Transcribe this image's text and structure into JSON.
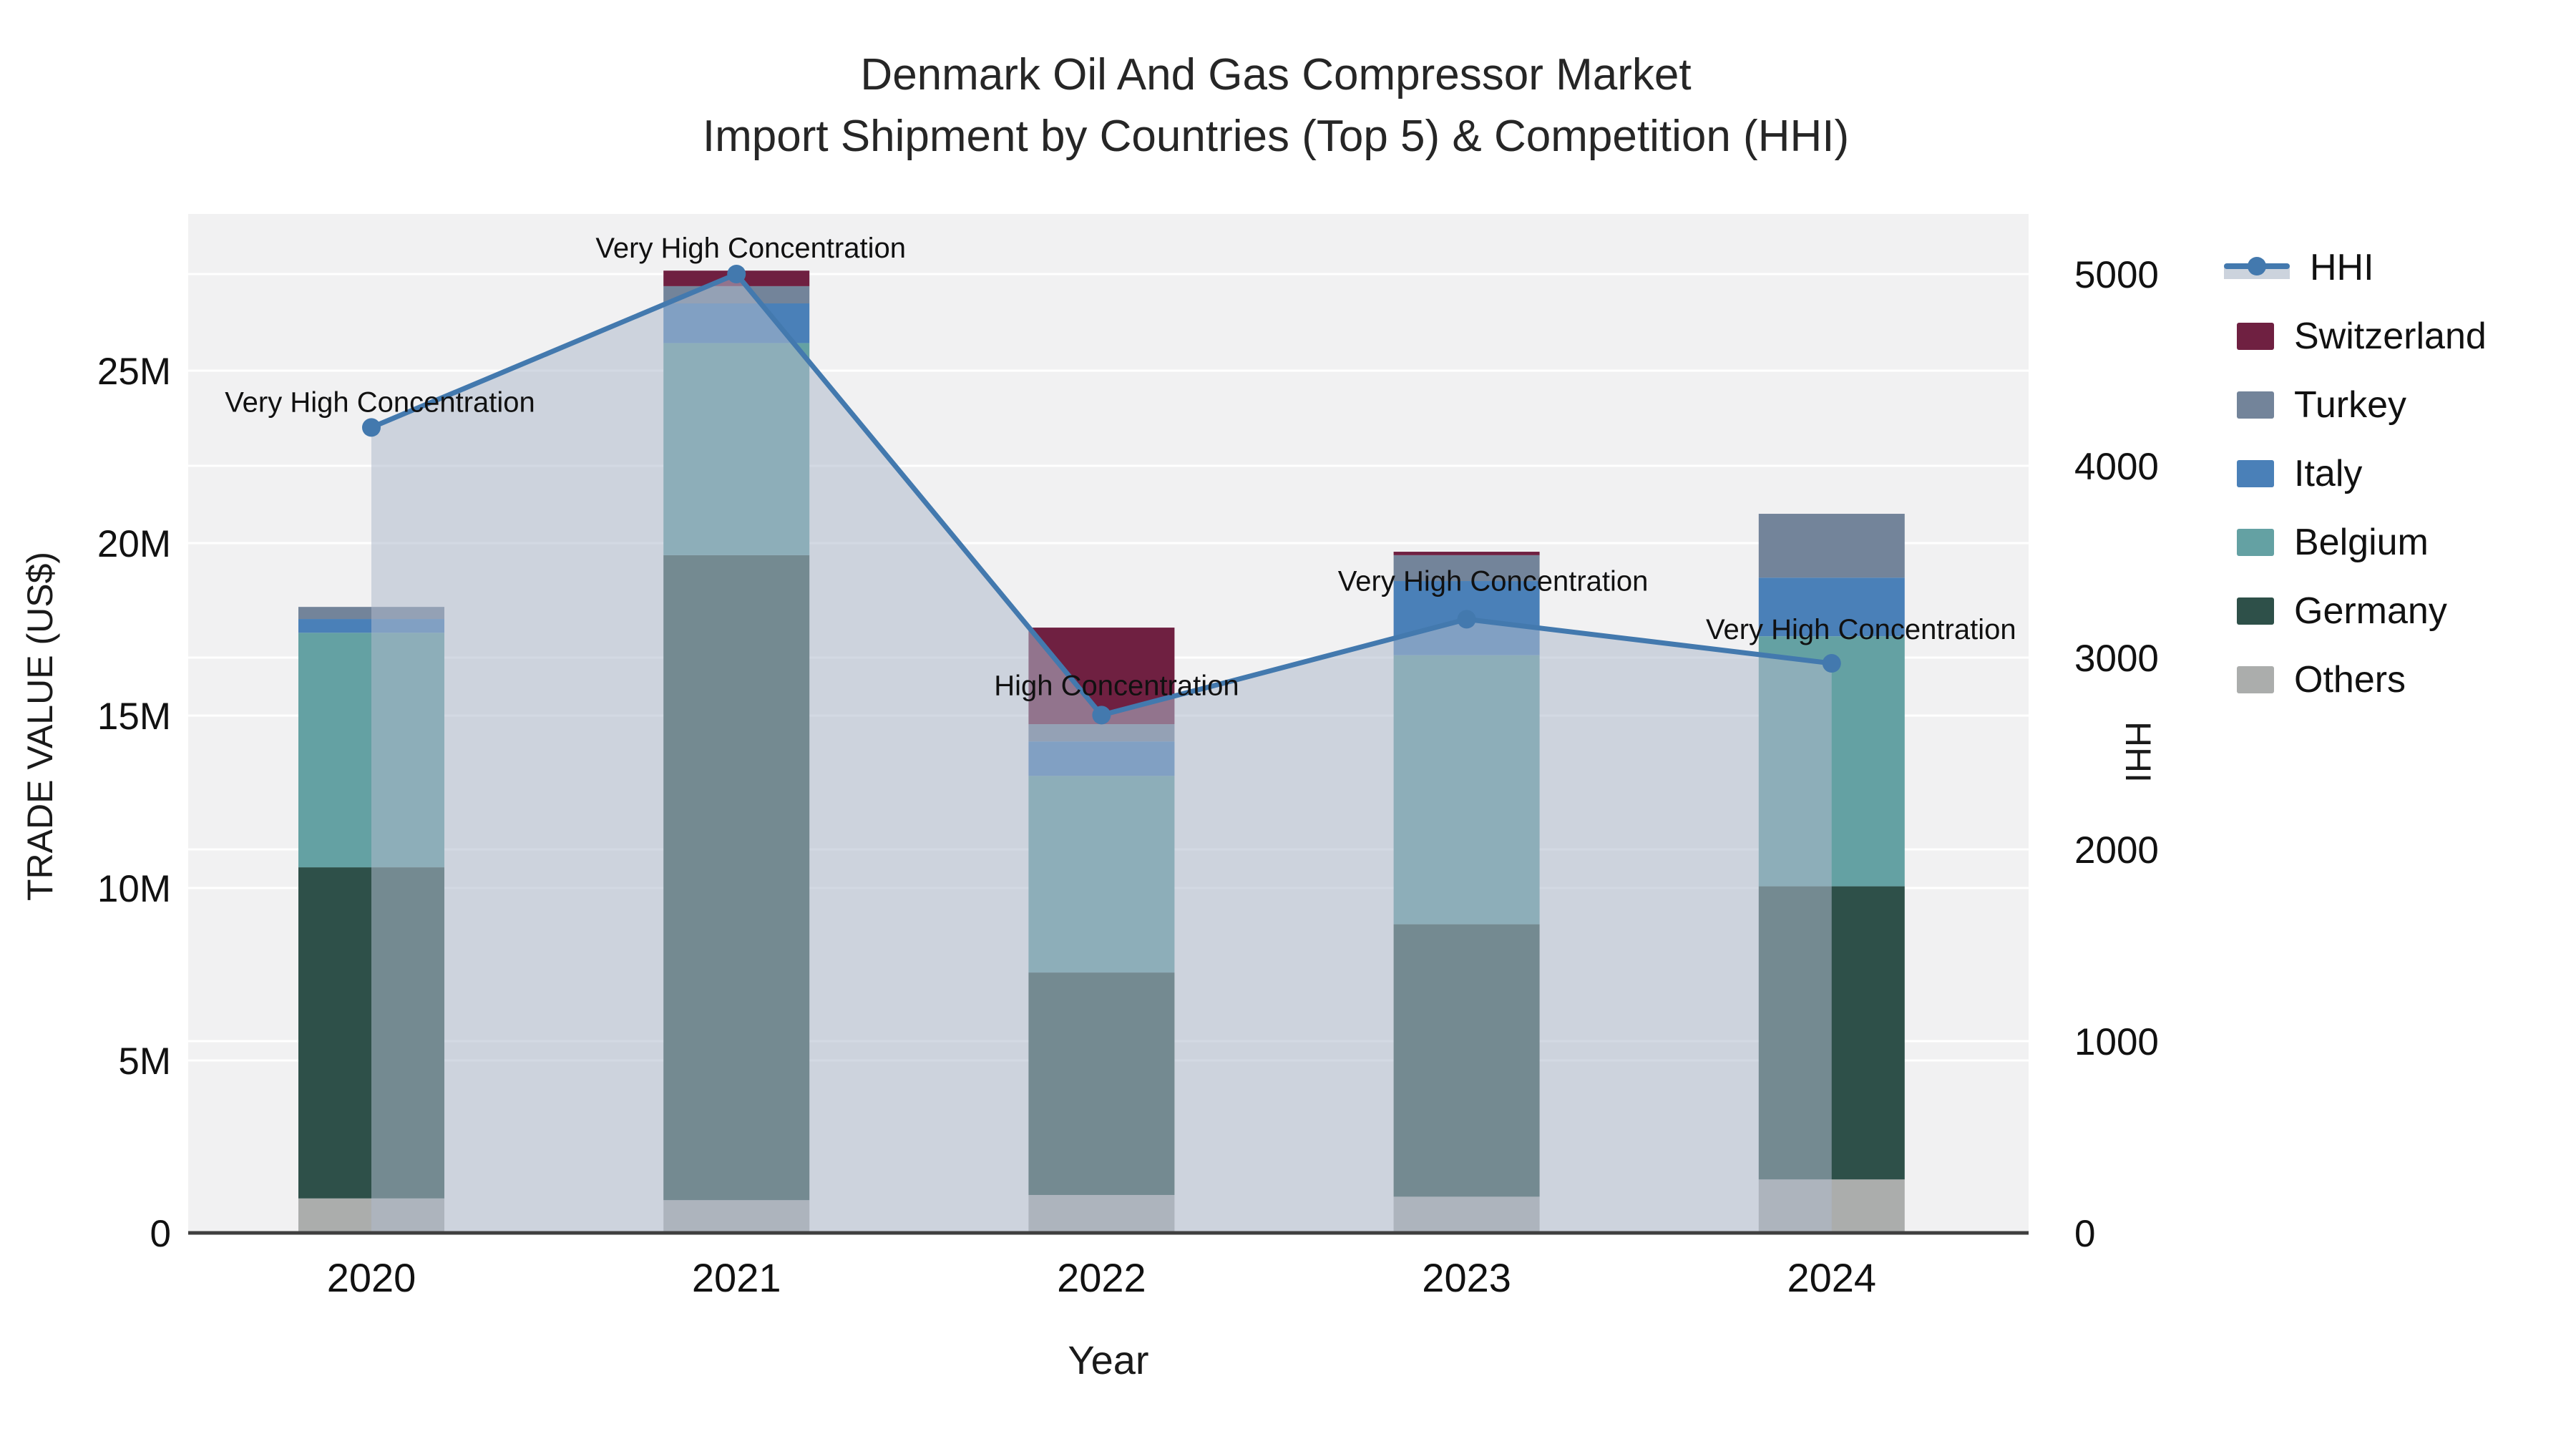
{
  "title": {
    "line1": "Denmark Oil And Gas Compressor Market",
    "line2": "Import Shipment by Countries (Top 5) & Competition (HHI)"
  },
  "axes": {
    "x": {
      "title": "Year"
    },
    "left": {
      "title": "TRADE VALUE (US$)",
      "ticks": [
        {
          "label": "0",
          "value": 0
        },
        {
          "label": "5M",
          "value": 5
        },
        {
          "label": "10M",
          "value": 10
        },
        {
          "label": "15M",
          "value": 15
        },
        {
          "label": "20M",
          "value": 20
        },
        {
          "label": "25M",
          "value": 25
        }
      ]
    },
    "right": {
      "title": "HHI",
      "ticks": [
        {
          "label": "0",
          "value": 0
        },
        {
          "label": "1000",
          "value": 1000
        },
        {
          "label": "2000",
          "value": 2000
        },
        {
          "label": "3000",
          "value": 3000
        },
        {
          "label": "4000",
          "value": 4000
        },
        {
          "label": "5000",
          "value": 5000
        }
      ]
    }
  },
  "chart_data": {
    "type": "bar",
    "subtype": "stacked-bar-with-line-overlay",
    "title": "Denmark Oil And Gas Compressor Market — Import Shipment by Countries (Top 5) & Competition (HHI)",
    "xlabel": "Year",
    "ylabel_left": "TRADE VALUE (US$)",
    "ylabel_right": "HHI",
    "unit_left": "US$ millions",
    "categories": [
      "2020",
      "2021",
      "2022",
      "2023",
      "2024"
    ],
    "ylim_left_millions": [
      0,
      29.5
    ],
    "ylim_right": [
      0,
      5310
    ],
    "grid": true,
    "legend_position": "right-outside",
    "series": [
      {
        "name": "Others",
        "color": "#abadac",
        "values": [
          1.0,
          0.95,
          1.1,
          1.05,
          1.55
        ]
      },
      {
        "name": "Germany",
        "color": "#2e5049",
        "values": [
          9.6,
          18.7,
          6.45,
          7.9,
          8.5
        ]
      },
      {
        "name": "Belgium",
        "color": "#64a1a3",
        "values": [
          6.8,
          6.15,
          5.7,
          7.8,
          7.25
        ]
      },
      {
        "name": "Italy",
        "color": "#4a80b8",
        "values": [
          0.4,
          1.15,
          1.0,
          2.15,
          1.7
        ]
      },
      {
        "name": "Turkey",
        "color": "#73849a",
        "values": [
          0.35,
          0.5,
          0.5,
          0.75,
          1.85
        ]
      },
      {
        "name": "Switzerland",
        "color": "#6f2041",
        "values": [
          0.0,
          0.45,
          2.8,
          0.1,
          0.0
        ]
      }
    ],
    "bar_totals_millions": [
      18.15,
      27.9,
      17.55,
      19.75,
      20.85
    ],
    "line_series": {
      "name": "HHI",
      "axis": "right",
      "color": "#4379ae",
      "fill": "tozeroy",
      "fill_color": "rgba(174,186,204,0.55)",
      "values": [
        4200,
        5000,
        2700,
        3200,
        2970
      ]
    },
    "annotations": [
      {
        "category": "2020",
        "text": "Very High Concentration"
      },
      {
        "category": "2021",
        "text": "Very High Concentration"
      },
      {
        "category": "2022",
        "text": "High Concentration"
      },
      {
        "category": "2023",
        "text": "Very High Concentration"
      },
      {
        "category": "2024",
        "text": "Very High Concentration"
      }
    ]
  },
  "legend": {
    "items": [
      {
        "label": "HHI",
        "type": "line",
        "color": "#4379ae"
      },
      {
        "label": "Switzerland",
        "type": "square",
        "color": "#6f2041"
      },
      {
        "label": "Turkey",
        "type": "square",
        "color": "#73849a"
      },
      {
        "label": "Italy",
        "type": "square",
        "color": "#4a80b8"
      },
      {
        "label": "Belgium",
        "type": "square",
        "color": "#64a1a3"
      },
      {
        "label": "Germany",
        "type": "square",
        "color": "#2e5049"
      },
      {
        "label": "Others",
        "type": "square",
        "color": "#abadac"
      }
    ]
  },
  "colors": {
    "background": "#ffffff",
    "plot_background": "#f1f1f2",
    "gridline": "#ffffff",
    "axis_line": "#3f3f3f",
    "text": "#111111"
  }
}
